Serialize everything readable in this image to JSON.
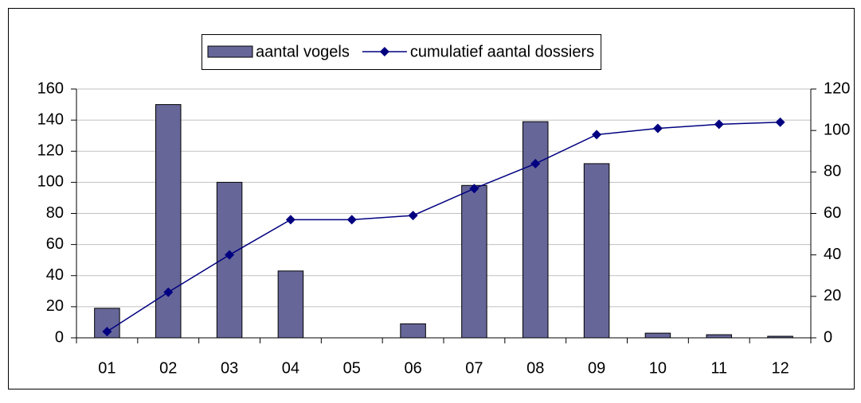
{
  "chart_data": {
    "type": "bar",
    "categories": [
      "01",
      "02",
      "03",
      "04",
      "05",
      "06",
      "07",
      "08",
      "09",
      "10",
      "11",
      "12"
    ],
    "series": [
      {
        "name": "aantal vogels",
        "type": "bar",
        "color": "#666699",
        "values": [
          19,
          150,
          100,
          43,
          0,
          9,
          98,
          139,
          112,
          3,
          2,
          1
        ]
      },
      {
        "name": "cumulatief aantal dossiers",
        "type": "line",
        "axis": "y2",
        "color": "#000080",
        "values": [
          3,
          22,
          40,
          57,
          57,
          59,
          72,
          84,
          98,
          101,
          103,
          104
        ]
      }
    ],
    "ylim": [
      0,
      160
    ],
    "yticks": [
      0,
      20,
      40,
      60,
      80,
      100,
      120,
      140,
      160
    ],
    "y2lim": [
      0,
      120
    ],
    "y2ticks": [
      0,
      20,
      40,
      60,
      80,
      100,
      120
    ],
    "grid": true,
    "legend": "top"
  }
}
